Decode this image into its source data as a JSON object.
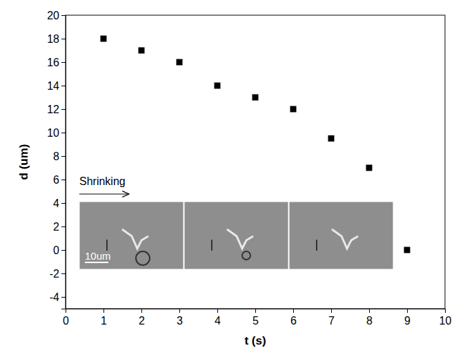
{
  "chart_data": {
    "type": "scatter",
    "x_label": "t (s)",
    "y_label": "d (um)",
    "x": [
      1,
      2,
      3,
      4,
      5,
      6,
      7,
      8,
      9
    ],
    "values": [
      18,
      17,
      16,
      14,
      13,
      12,
      9.5,
      7,
      0
    ],
    "color": "#000000",
    "marker": "square",
    "xlim": [
      0,
      10
    ],
    "xticks": [
      0,
      1,
      2,
      3,
      4,
      5,
      6,
      7,
      8,
      9,
      10
    ],
    "ylim": [
      -5,
      20
    ],
    "yticks": [
      -4,
      -2,
      0,
      2,
      4,
      6,
      8,
      10,
      12,
      14,
      16,
      18,
      20
    ],
    "grid": false,
    "annotations": [
      "Shrinking",
      "10um"
    ]
  }
}
